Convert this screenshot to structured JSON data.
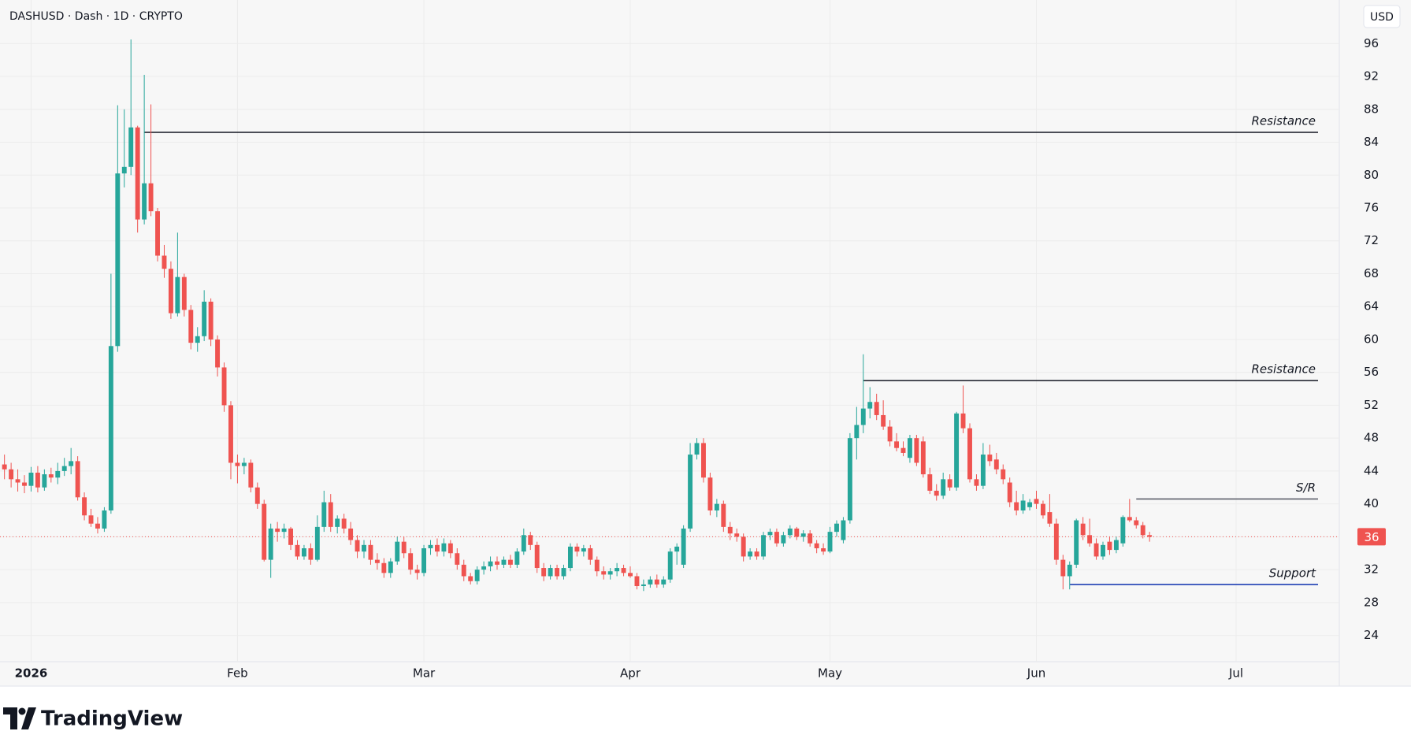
{
  "chart_data": {
    "type": "candlestick",
    "title": "DASHUSD · Dash · 1D · CRYPTO",
    "currency": "USD",
    "brand": "TradingView",
    "up_color": "#26a69a",
    "down_color": "#ef5350",
    "grid": true,
    "ylim": [
      20.8,
      101.3
    ],
    "yticks": [
      24,
      28,
      32,
      36,
      40,
      44,
      48,
      52,
      56,
      60,
      64,
      68,
      72,
      76,
      80,
      84,
      88,
      92,
      96
    ],
    "xlim": [
      -0.67,
      200.5
    ],
    "xticks": [
      {
        "value": 4,
        "label": "2026"
      },
      {
        "value": 35,
        "label": "Feb"
      },
      {
        "value": 63,
        "label": "Mar"
      },
      {
        "value": 94,
        "label": "Apr"
      },
      {
        "value": 124,
        "label": "May"
      },
      {
        "value": 155,
        "label": "Jun"
      },
      {
        "value": 185,
        "label": "Jul"
      }
    ],
    "last_price": 36,
    "lines": [
      {
        "label": "Resistance",
        "value": 85.2,
        "start": 21,
        "color": "#131722"
      },
      {
        "label": "Resistance",
        "value": 55.0,
        "start": 129,
        "color": "#131722"
      },
      {
        "label": "S/R",
        "value": 40.6,
        "start": 170,
        "color": "#5d606b"
      },
      {
        "label": "Support",
        "value": 30.2,
        "start": 160,
        "color": "#1e3fb4"
      }
    ],
    "ohlc": [
      [
        44.8,
        46.0,
        43.0,
        44.2
      ],
      [
        44.2,
        45.0,
        42.0,
        43.0
      ],
      [
        43.0,
        44.2,
        41.5,
        42.6
      ],
      [
        42.6,
        43.5,
        41.3,
        42.2
      ],
      [
        42.2,
        44.5,
        41.5,
        43.8
      ],
      [
        43.8,
        44.6,
        41.4,
        42.0
      ],
      [
        42.0,
        44.2,
        41.6,
        43.6
      ],
      [
        43.6,
        44.4,
        42.6,
        43.2
      ],
      [
        43.2,
        45.0,
        42.4,
        44.0
      ],
      [
        44.0,
        45.6,
        43.4,
        44.6
      ],
      [
        44.6,
        46.8,
        43.6,
        45.2
      ],
      [
        45.2,
        45.8,
        40.4,
        40.8
      ],
      [
        40.8,
        41.4,
        38.0,
        38.6
      ],
      [
        38.6,
        39.4,
        37.2,
        37.6
      ],
      [
        37.6,
        38.4,
        36.4,
        37.0
      ],
      [
        37.0,
        39.6,
        36.6,
        39.2
      ],
      [
        39.2,
        68.0,
        38.8,
        59.2
      ],
      [
        59.2,
        88.5,
        58.5,
        80.2
      ],
      [
        80.2,
        88.0,
        78.5,
        81.0
      ],
      [
        81.0,
        96.5,
        80.0,
        85.8
      ],
      [
        85.8,
        86.0,
        73.0,
        74.6
      ],
      [
        74.6,
        92.2,
        74.0,
        79.0
      ],
      [
        79.0,
        88.6,
        75.0,
        75.6
      ],
      [
        75.6,
        76.0,
        69.5,
        70.2
      ],
      [
        70.2,
        71.5,
        67.5,
        68.6
      ],
      [
        68.6,
        69.5,
        62.5,
        63.2
      ],
      [
        63.2,
        73.0,
        62.8,
        67.6
      ],
      [
        67.6,
        68.0,
        62.8,
        63.6
      ],
      [
        63.6,
        64.2,
        58.8,
        59.6
      ],
      [
        59.6,
        61.5,
        58.5,
        60.4
      ],
      [
        60.4,
        66.0,
        59.8,
        64.6
      ],
      [
        64.6,
        65.0,
        59.2,
        60.0
      ],
      [
        60.0,
        60.5,
        55.5,
        56.6
      ],
      [
        56.6,
        57.2,
        51.2,
        52.0
      ],
      [
        52.0,
        52.5,
        43.0,
        45.0
      ],
      [
        45.0,
        46.0,
        42.5,
        44.6
      ],
      [
        44.6,
        45.6,
        43.6,
        45.0
      ],
      [
        45.0,
        45.4,
        41.4,
        42.0
      ],
      [
        42.0,
        42.6,
        39.4,
        40.0
      ],
      [
        40.0,
        40.5,
        33.0,
        33.2
      ],
      [
        33.2,
        37.6,
        31.0,
        37.0
      ],
      [
        37.0,
        37.8,
        35.4,
        36.6
      ],
      [
        36.6,
        37.6,
        35.8,
        37.0
      ],
      [
        37.0,
        37.2,
        34.4,
        35.0
      ],
      [
        35.0,
        35.6,
        33.2,
        33.6
      ],
      [
        33.6,
        35.0,
        33.2,
        34.6
      ],
      [
        34.6,
        35.2,
        32.6,
        33.2
      ],
      [
        33.2,
        38.6,
        33.0,
        37.2
      ],
      [
        37.2,
        41.6,
        36.6,
        40.2
      ],
      [
        40.2,
        41.2,
        36.6,
        37.2
      ],
      [
        37.2,
        38.6,
        36.4,
        38.2
      ],
      [
        38.2,
        38.8,
        36.4,
        37.0
      ],
      [
        37.0,
        37.8,
        35.0,
        35.6
      ],
      [
        35.6,
        36.2,
        33.4,
        34.2
      ],
      [
        34.2,
        35.6,
        33.4,
        35.0
      ],
      [
        35.0,
        35.6,
        32.6,
        33.2
      ],
      [
        33.2,
        34.0,
        32.0,
        32.8
      ],
      [
        32.8,
        33.4,
        31.0,
        31.6
      ],
      [
        31.6,
        33.4,
        31.0,
        33.0
      ],
      [
        33.0,
        36.0,
        32.6,
        35.4
      ],
      [
        35.4,
        36.0,
        33.4,
        34.0
      ],
      [
        34.0,
        34.6,
        31.4,
        32.0
      ],
      [
        32.0,
        32.6,
        30.8,
        31.6
      ],
      [
        31.6,
        35.0,
        31.2,
        34.6
      ],
      [
        34.6,
        35.6,
        33.8,
        35.0
      ],
      [
        35.0,
        35.8,
        33.6,
        34.2
      ],
      [
        34.2,
        35.8,
        33.6,
        35.2
      ],
      [
        35.2,
        35.6,
        33.4,
        34.0
      ],
      [
        34.0,
        34.6,
        32.0,
        32.6
      ],
      [
        32.6,
        33.2,
        30.6,
        31.2
      ],
      [
        31.2,
        31.6,
        30.2,
        30.6
      ],
      [
        30.6,
        32.4,
        30.2,
        32.0
      ],
      [
        32.0,
        33.0,
        31.4,
        32.4
      ],
      [
        32.4,
        33.6,
        31.8,
        33.0
      ],
      [
        33.0,
        33.6,
        32.0,
        32.6
      ],
      [
        32.6,
        33.6,
        32.2,
        33.2
      ],
      [
        33.2,
        33.8,
        32.2,
        32.6
      ],
      [
        32.6,
        34.6,
        32.2,
        34.2
      ],
      [
        34.2,
        37.0,
        33.8,
        36.2
      ],
      [
        36.2,
        36.6,
        34.4,
        35.0
      ],
      [
        35.0,
        35.4,
        31.6,
        32.2
      ],
      [
        32.2,
        32.8,
        30.6,
        31.2
      ],
      [
        31.2,
        32.6,
        30.8,
        32.2
      ],
      [
        32.2,
        32.6,
        30.8,
        31.2
      ],
      [
        31.2,
        32.6,
        30.8,
        32.2
      ],
      [
        32.2,
        35.2,
        31.8,
        34.8
      ],
      [
        34.8,
        35.2,
        33.6,
        34.2
      ],
      [
        34.2,
        35.0,
        33.6,
        34.6
      ],
      [
        34.6,
        35.0,
        32.6,
        33.2
      ],
      [
        33.2,
        33.6,
        31.2,
        31.8
      ],
      [
        31.8,
        32.4,
        30.8,
        31.4
      ],
      [
        31.4,
        32.2,
        30.8,
        31.8
      ],
      [
        31.8,
        32.8,
        31.2,
        32.2
      ],
      [
        32.2,
        32.6,
        31.2,
        31.6
      ],
      [
        31.6,
        32.4,
        31.0,
        31.2
      ],
      [
        31.2,
        31.6,
        29.6,
        30.0
      ],
      [
        30.0,
        30.8,
        29.4,
        30.2
      ],
      [
        30.2,
        31.2,
        29.8,
        30.8
      ],
      [
        30.8,
        31.4,
        29.8,
        30.2
      ],
      [
        30.2,
        31.2,
        29.8,
        30.8
      ],
      [
        30.8,
        34.6,
        30.4,
        34.2
      ],
      [
        34.2,
        35.2,
        32.6,
        34.8
      ],
      [
        32.6,
        37.4,
        32.2,
        37.0
      ],
      [
        37.0,
        47.4,
        36.6,
        46.0
      ],
      [
        46.0,
        48.0,
        45.4,
        47.4
      ],
      [
        47.4,
        48.0,
        42.6,
        43.2
      ],
      [
        43.2,
        43.8,
        38.6,
        39.2
      ],
      [
        39.2,
        40.6,
        38.4,
        40.0
      ],
      [
        40.0,
        40.4,
        36.6,
        37.2
      ],
      [
        37.2,
        37.8,
        35.6,
        36.4
      ],
      [
        36.4,
        37.0,
        35.4,
        36.0
      ],
      [
        36.0,
        36.4,
        33.0,
        33.6
      ],
      [
        33.6,
        34.6,
        33.2,
        34.2
      ],
      [
        34.2,
        34.6,
        33.2,
        33.6
      ],
      [
        33.6,
        36.6,
        33.2,
        36.2
      ],
      [
        36.2,
        37.0,
        35.6,
        36.6
      ],
      [
        36.6,
        37.0,
        34.8,
        35.2
      ],
      [
        35.2,
        36.6,
        34.8,
        36.2
      ],
      [
        36.2,
        37.4,
        35.8,
        37.0
      ],
      [
        37.0,
        37.2,
        35.6,
        36.0
      ],
      [
        36.0,
        36.8,
        35.4,
        36.4
      ],
      [
        36.4,
        36.8,
        34.8,
        35.2
      ],
      [
        35.2,
        35.6,
        34.0,
        34.6
      ],
      [
        34.6,
        35.2,
        33.8,
        34.2
      ],
      [
        34.2,
        37.2,
        34.0,
        36.6
      ],
      [
        36.6,
        38.0,
        36.0,
        37.6
      ],
      [
        35.6,
        38.4,
        35.2,
        38.0
      ],
      [
        38.0,
        48.6,
        37.6,
        48.0
      ],
      [
        48.0,
        51.8,
        45.4,
        49.6
      ],
      [
        49.6,
        58.2,
        48.6,
        51.6
      ],
      [
        51.6,
        54.2,
        50.4,
        52.4
      ],
      [
        52.4,
        53.4,
        50.2,
        50.8
      ],
      [
        50.8,
        52.6,
        49.0,
        49.4
      ],
      [
        49.4,
        50.2,
        47.0,
        47.6
      ],
      [
        47.6,
        48.6,
        46.4,
        46.8
      ],
      [
        46.8,
        47.6,
        45.8,
        46.2
      ],
      [
        45.6,
        48.4,
        45.0,
        48.0
      ],
      [
        48.0,
        48.4,
        44.6,
        45.0
      ],
      [
        47.6,
        48.2,
        43.2,
        43.6
      ],
      [
        43.6,
        44.4,
        41.2,
        41.6
      ],
      [
        41.6,
        42.4,
        40.4,
        41.0
      ],
      [
        41.0,
        43.8,
        40.6,
        43.0
      ],
      [
        43.0,
        43.6,
        41.6,
        42.0
      ],
      [
        42.0,
        51.2,
        41.6,
        51.0
      ],
      [
        51.0,
        54.4,
        48.6,
        49.2
      ],
      [
        49.2,
        49.8,
        42.6,
        43.0
      ],
      [
        43.0,
        43.6,
        41.6,
        42.2
      ],
      [
        42.2,
        47.4,
        41.8,
        46.0
      ],
      [
        46.0,
        47.2,
        44.6,
        45.2
      ],
      [
        45.4,
        46.2,
        43.6,
        44.2
      ],
      [
        44.2,
        44.8,
        42.4,
        43.0
      ],
      [
        42.6,
        43.2,
        39.6,
        40.2
      ],
      [
        40.2,
        41.6,
        38.6,
        39.2
      ],
      [
        39.2,
        41.2,
        38.8,
        40.4
      ],
      [
        39.6,
        40.6,
        39.2,
        40.2
      ],
      [
        40.6,
        41.6,
        39.4,
        40.0
      ],
      [
        40.0,
        40.4,
        38.2,
        38.6
      ],
      [
        39.0,
        41.2,
        37.2,
        37.6
      ],
      [
        37.6,
        38.2,
        32.6,
        33.2
      ],
      [
        33.2,
        33.8,
        29.6,
        31.2
      ],
      [
        31.2,
        33.0,
        29.6,
        32.6
      ],
      [
        32.6,
        38.2,
        32.2,
        38.0
      ],
      [
        37.6,
        38.4,
        35.6,
        36.2
      ],
      [
        36.2,
        38.2,
        34.8,
        35.2
      ],
      [
        35.2,
        35.8,
        33.2,
        33.6
      ],
      [
        33.6,
        35.4,
        33.2,
        35.0
      ],
      [
        35.4,
        36.0,
        33.8,
        34.4
      ],
      [
        34.4,
        36.0,
        34.0,
        35.6
      ],
      [
        35.2,
        38.6,
        34.8,
        38.4
      ],
      [
        38.4,
        40.6,
        37.8,
        38.0
      ],
      [
        38.0,
        38.4,
        37.0,
        37.4
      ],
      [
        37.4,
        37.8,
        35.8,
        36.2
      ],
      [
        36.2,
        36.6,
        35.4,
        36.0
      ]
    ]
  }
}
